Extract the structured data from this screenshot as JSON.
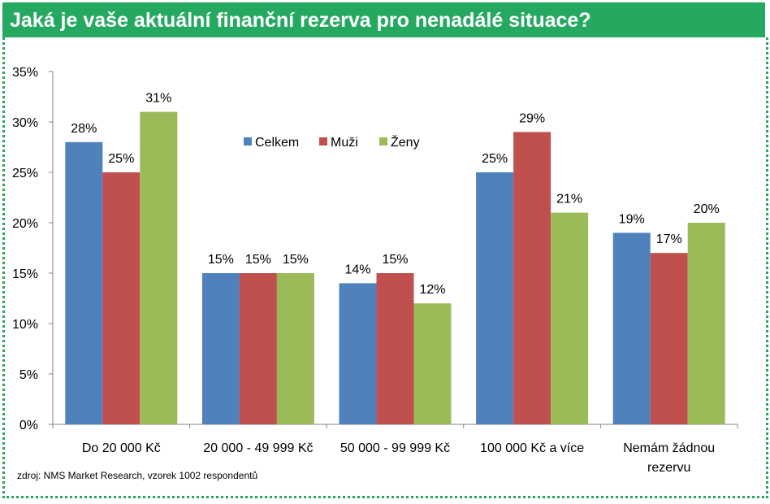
{
  "header": {
    "title": "Jaká je vaše aktuální finanční rezerva pro nenadálé situace?"
  },
  "colors": {
    "header_bg": "#25a961",
    "frame": "#2aa45e"
  },
  "source": "zdroj: NMS Market Research, vzorek 1002 respondentů",
  "chart_data": {
    "type": "bar",
    "title": "",
    "xlabel": "",
    "ylabel": "",
    "ylim": [
      0,
      35
    ],
    "yticks": [
      "0%",
      "5%",
      "10%",
      "15%",
      "20%",
      "25%",
      "30%",
      "35%"
    ],
    "categories": [
      [
        "Do 20 000 Kč"
      ],
      [
        "20 000 - 49 999 Kč"
      ],
      [
        "50 000 - 99 999 Kč"
      ],
      [
        "100 000 Kč a více"
      ],
      [
        "Nemám žádnou",
        "rezervu"
      ]
    ],
    "series": [
      {
        "name": "Celkem",
        "color": "#4f81bd",
        "values": [
          28,
          15,
          14,
          25,
          19
        ],
        "labels": [
          "28%",
          "15%",
          "14%",
          "25%",
          "19%"
        ]
      },
      {
        "name": "Muži",
        "color": "#c0504d",
        "values": [
          25,
          15,
          15,
          29,
          17
        ],
        "labels": [
          "25%",
          "15%",
          "15%",
          "29%",
          "17%"
        ]
      },
      {
        "name": "Ženy",
        "color": "#9bbb59",
        "values": [
          31,
          15,
          12,
          21,
          20
        ],
        "labels": [
          "31%",
          "15%",
          "12%",
          "21%",
          "20%"
        ]
      }
    ],
    "grid": false,
    "legend": "top-center"
  }
}
